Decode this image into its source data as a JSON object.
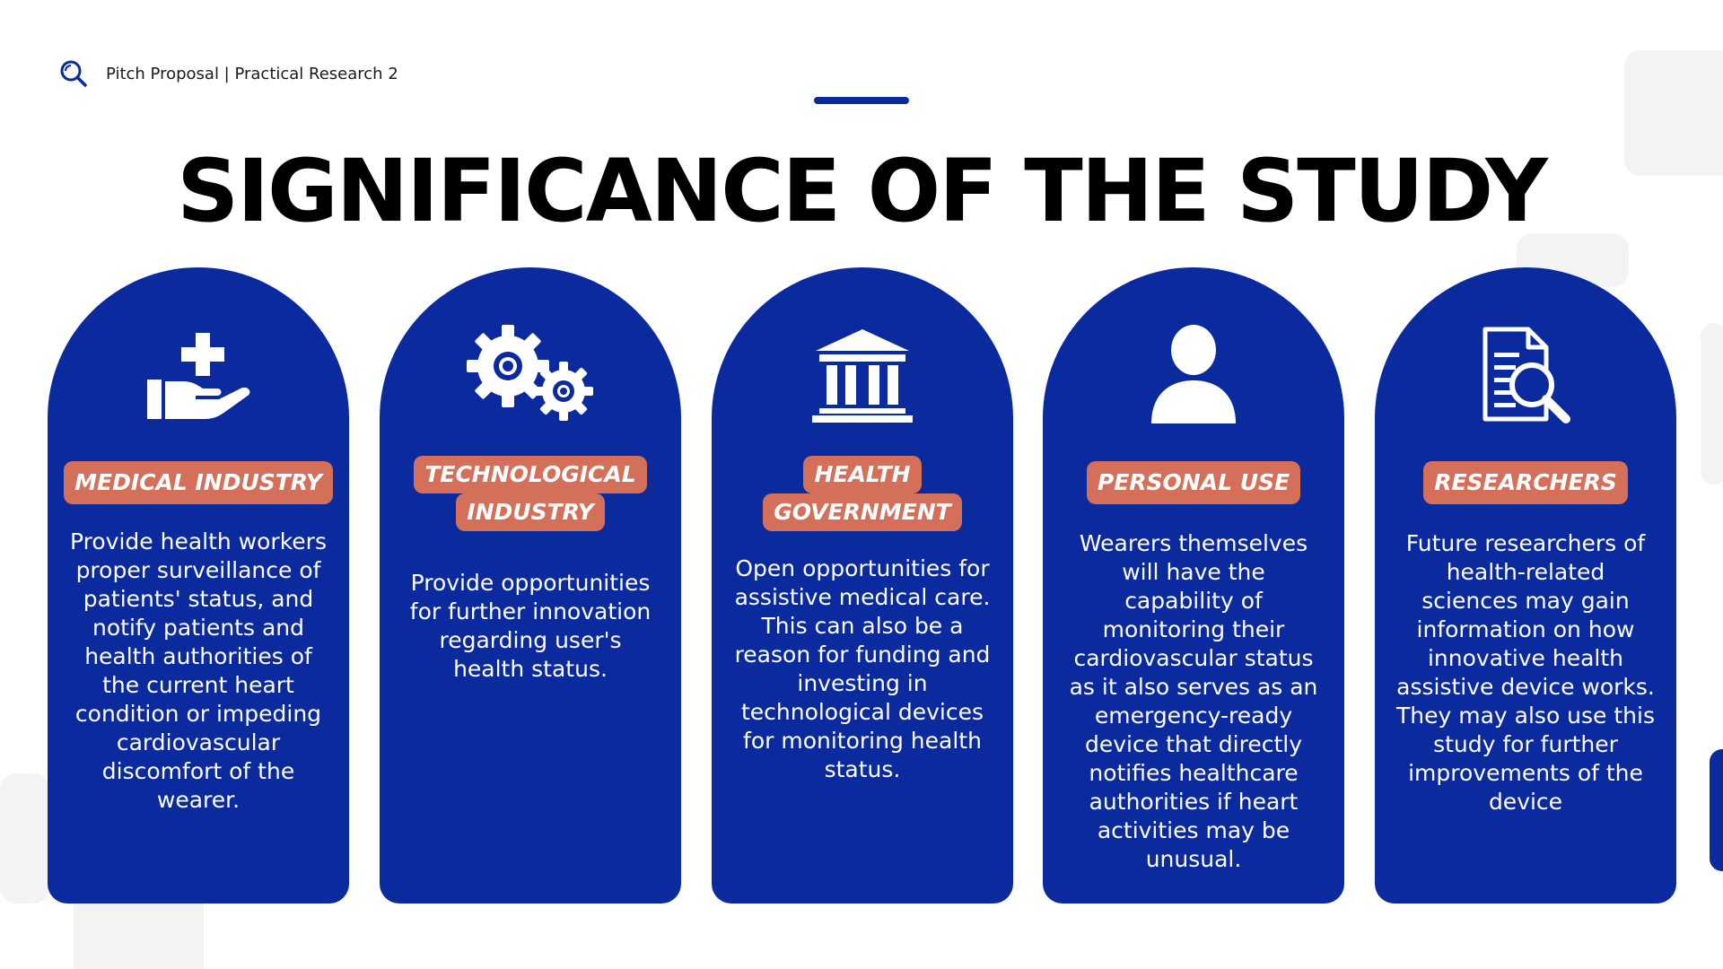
{
  "header": {
    "icon": "magnifier-icon",
    "text": "Pitch Proposal | Practical Research 2"
  },
  "title": "SIGNIFICANCE OF THE STUDY",
  "colors": {
    "primary": "#0a2a9e",
    "accent": "#d4705a",
    "text_on_primary": "#ffffff",
    "title": "#000000"
  },
  "cards": [
    {
      "icon": "hand-with-plus-icon",
      "tag_lines": [
        "MEDICAL INDUSTRY"
      ],
      "text": "Provide health workers proper surveillance of patients' status, and notify patients and health authorities of the current heart condition or impeding cardiovascular discomfort of the wearer."
    },
    {
      "icon": "gears-icon",
      "tag_lines": [
        "TECHNOLOGICAL",
        "INDUSTRY"
      ],
      "text": "Provide opportunities for further innovation regarding user's health status."
    },
    {
      "icon": "government-building-icon",
      "tag_lines": [
        "HEALTH",
        "GOVERNMENT"
      ],
      "text": "Open opportunities for assistive medical care. This can also be a reason for funding and investing in technological devices for monitoring health status."
    },
    {
      "icon": "person-icon",
      "tag_lines": [
        "PERSONAL USE"
      ],
      "text": "Wearers themselves will have the capability of monitoring their cardiovascular status as it also serves as an emergency-ready device that directly notifies healthcare authorities if heart activities may be unusual."
    },
    {
      "icon": "document-search-icon",
      "tag_lines": [
        "RESEARCHERS"
      ],
      "text": "Future researchers of health-related sciences may gain information on how innovative health assistive device works. They may also use this study for further improvements of the device"
    }
  ]
}
